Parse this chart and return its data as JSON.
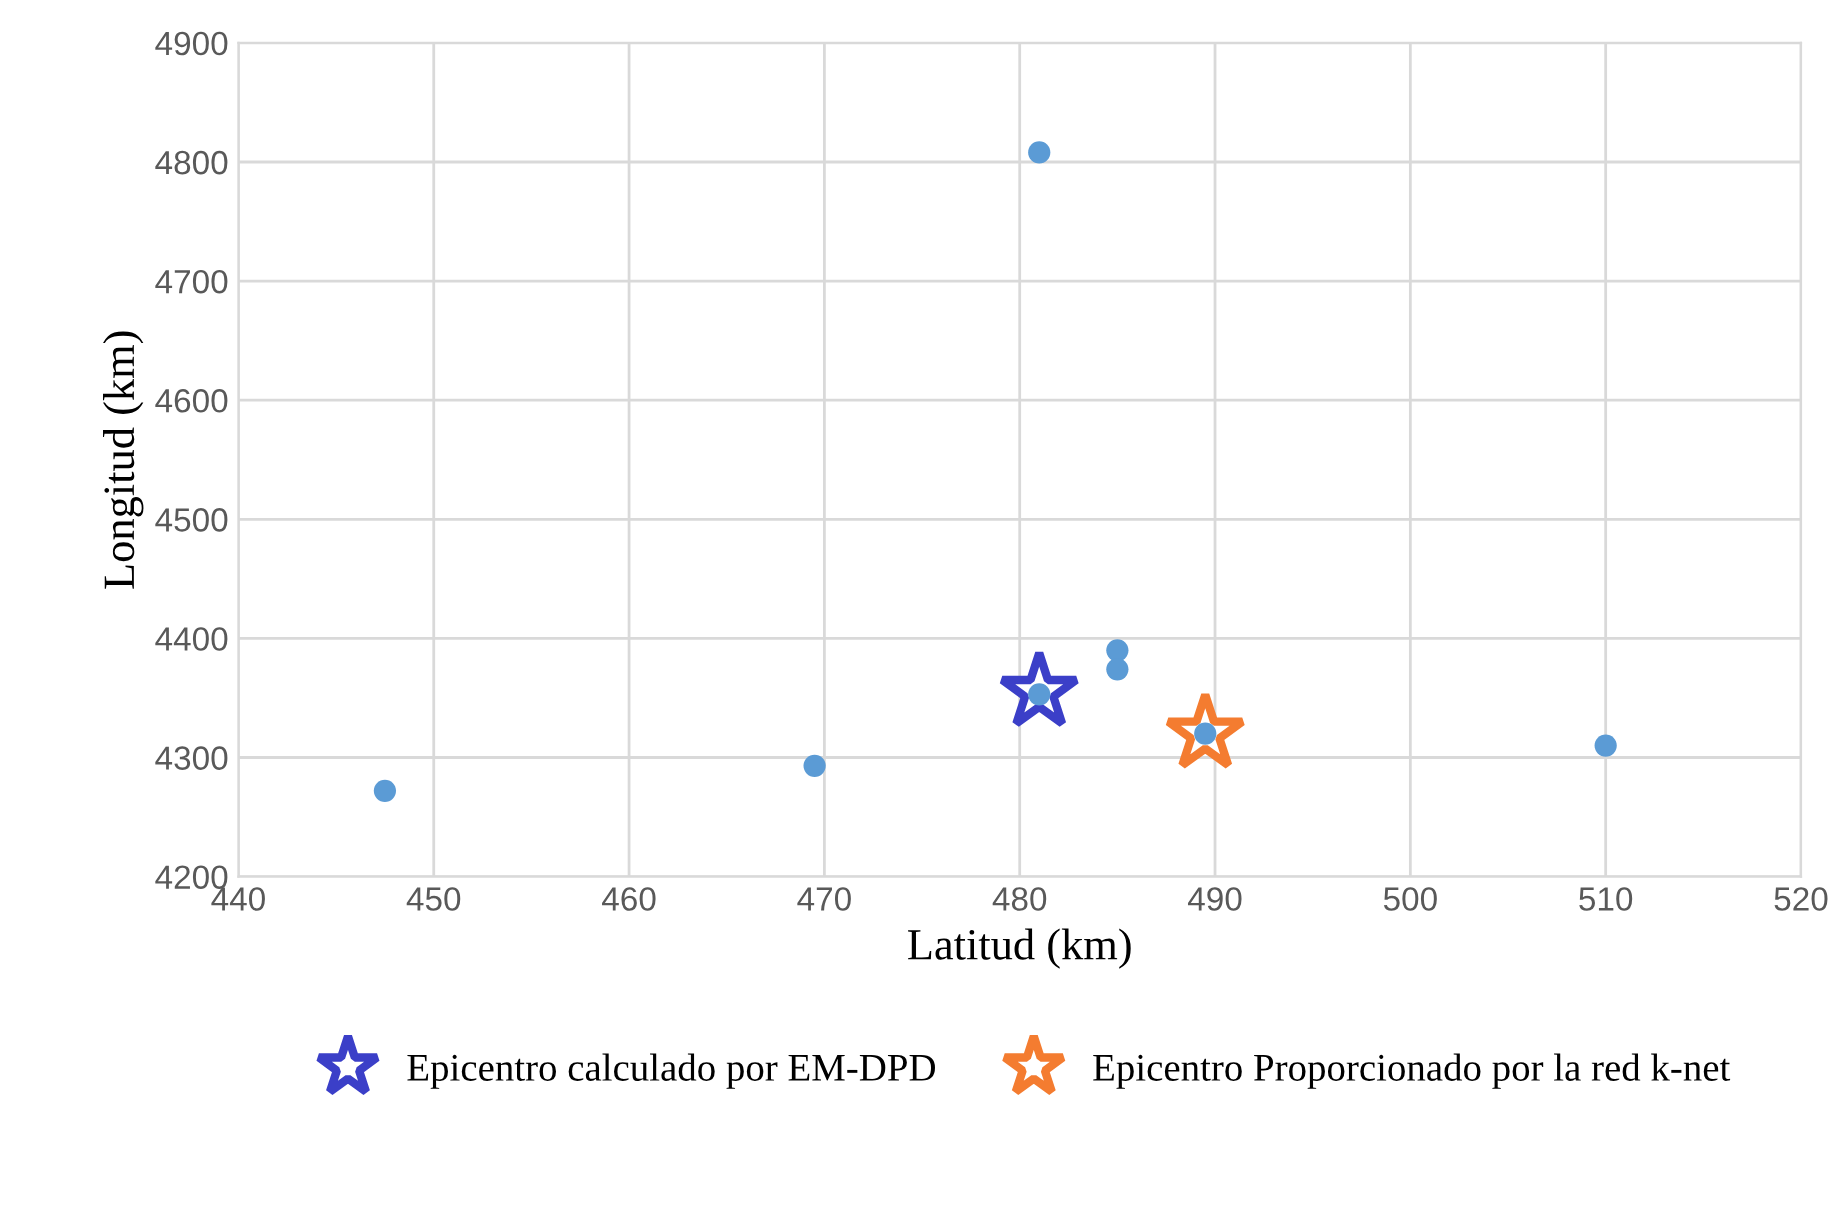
{
  "chart_data": {
    "type": "scatter",
    "xlabel": "Latitud (km)",
    "ylabel": "Longitud (km)",
    "xlim": [
      440,
      520
    ],
    "xticks": [
      440,
      450,
      460,
      470,
      480,
      490,
      500,
      510,
      520
    ],
    "ylim": [
      4200,
      4900
    ],
    "yticks": [
      4200,
      4300,
      4400,
      4500,
      4600,
      4700,
      4800,
      4900
    ],
    "grid": true,
    "legend": "bottom",
    "series": [
      {
        "color": "#5b9bd5",
        "marker": "circle",
        "x": [
          447.5,
          469.5,
          481,
          485,
          485,
          481,
          489.5,
          510
        ],
        "values": [
          4272,
          4293,
          4808,
          4390,
          4374,
          4353,
          4320,
          4310
        ]
      },
      {
        "name": "Epicentro calculado por EM-DPD",
        "color": "#3b3fc8",
        "marker": "star",
        "x": [
          481
        ],
        "values": [
          4355
        ]
      },
      {
        "name": "Epicentro Proporcionado por la red k-net",
        "color": "#f47c30",
        "marker": "star",
        "x": [
          489.5
        ],
        "values": [
          4320
        ]
      }
    ]
  }
}
